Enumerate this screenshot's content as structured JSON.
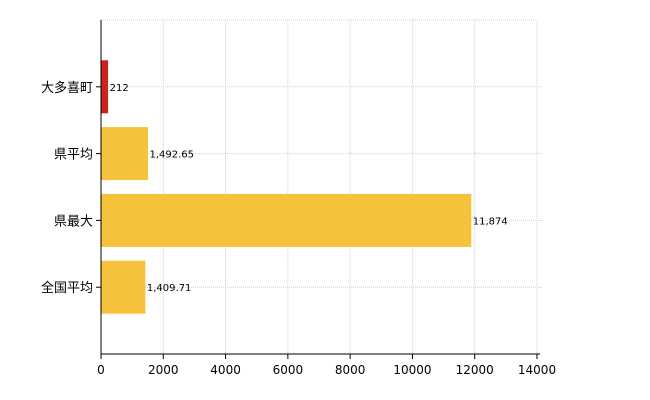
{
  "chart_data": {
    "type": "bar",
    "orientation": "horizontal",
    "categories": [
      "大多喜町",
      "県平均",
      "県最大",
      "全国平均"
    ],
    "values": [
      212,
      1492.65,
      11874,
      1409.71
    ],
    "value_labels": [
      "212",
      "1,492.65",
      "11,874",
      "1,409.71"
    ],
    "colors": [
      "#cc2222",
      "#f6c23c",
      "#f6c23c",
      "#f6c23c"
    ],
    "xlim": [
      0,
      14000
    ],
    "xticks": [
      0,
      2000,
      4000,
      6000,
      8000,
      10000,
      12000,
      14000
    ],
    "grid": true,
    "legend": "none"
  }
}
